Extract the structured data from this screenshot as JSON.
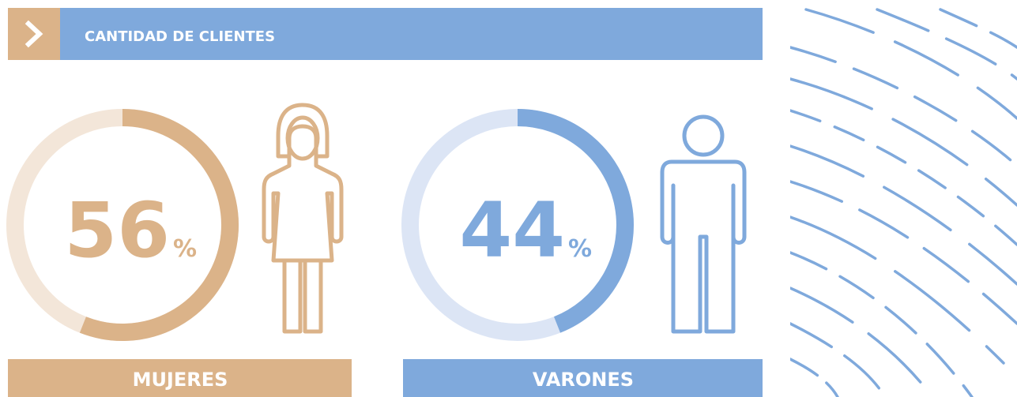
{
  "chart_data": {
    "type": "donut",
    "title": "CANTIDAD DE CLIENTES",
    "categories": [
      "MUJERES",
      "VARONES"
    ],
    "values": [
      56,
      44
    ],
    "unit": "%",
    "colors": [
      "#dbb389",
      "#7fa9dc"
    ]
  }
}
